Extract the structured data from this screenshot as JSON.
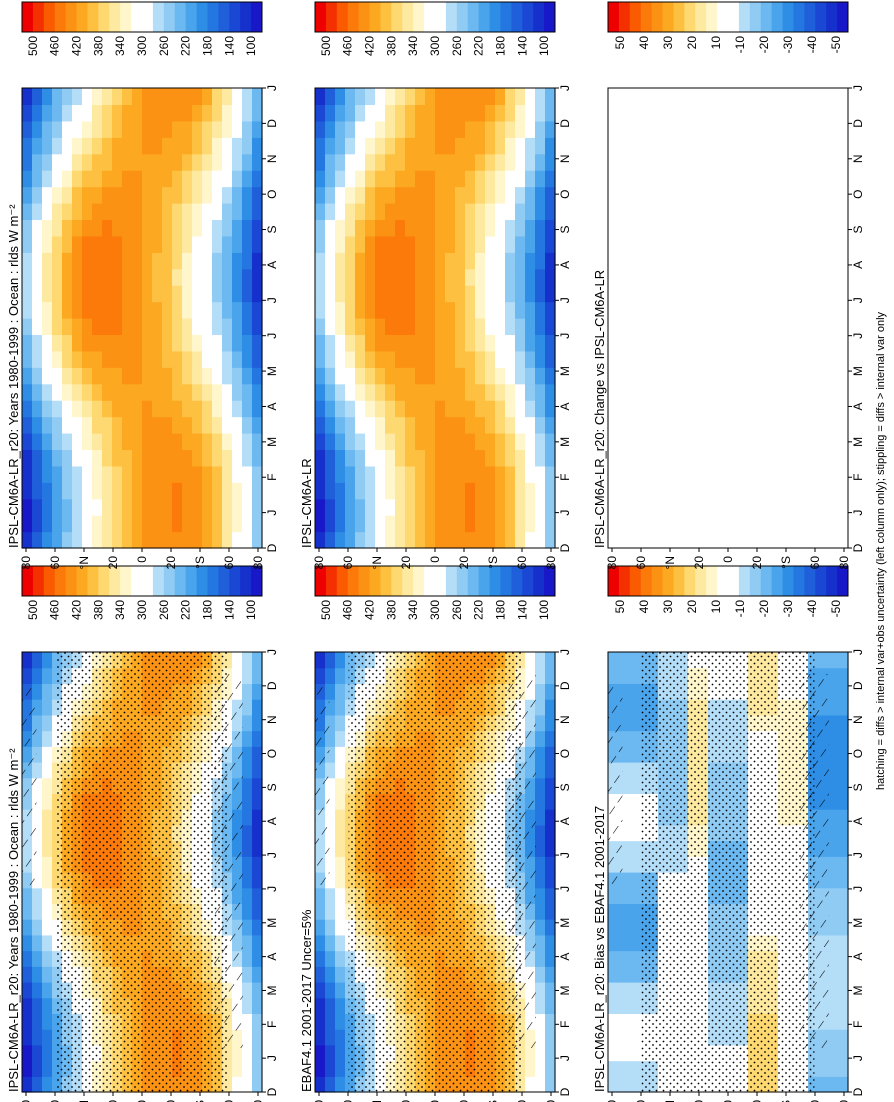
{
  "footer_note": "hatching = diffs > internal var+obs uncertainty (left column only); stippling = diffs > internal var only",
  "colors": {
    "abs_scale": [
      "#ee0000",
      "#f53000",
      "#fa5a00",
      "#fb7a0a",
      "#fc9214",
      "#fca820",
      "#fdc040",
      "#fed870",
      "#fee9a0",
      "#fff6cc",
      "#ffffff",
      "#ffffff",
      "#b4ddf8",
      "#90cbf4",
      "#6cb8f0",
      "#4aa4ec",
      "#2e8ee6",
      "#2477e0",
      "#1f60da",
      "#1a48d4",
      "#1630cc",
      "#1818c8"
    ],
    "diff_scale": [
      "#ee0000",
      "#f53000",
      "#fa5a00",
      "#fb7a0a",
      "#fc9214",
      "#fca820",
      "#fdc040",
      "#fed870",
      "#fee9a0",
      "#fff6cc",
      "#ffffff",
      "#ffffff",
      "#b4ddf8",
      "#90cbf4",
      "#6cb8f0",
      "#4aa4ec",
      "#2e8ee6",
      "#2477e0",
      "#1f60da",
      "#1a48d4",
      "#1630cc",
      "#1818c8"
    ]
  },
  "chart_data": [
    {
      "type": "heatmap",
      "title": "IPSL-CM6A-LR_r20: Years 1980-1999 : Ocean : rlds W m⁻²",
      "x_ticks": [
        "D",
        "J",
        "F",
        "M",
        "A",
        "M",
        "J",
        "J",
        "A",
        "S",
        "O",
        "N",
        "D",
        "J"
      ],
      "y_ticks": [
        "80",
        "60",
        "°N",
        "20",
        "0",
        "20",
        "°S",
        "60",
        "80"
      ],
      "colorbar_ticks": [
        "500",
        "460",
        "420",
        "380",
        "340",
        "300",
        "260",
        "220",
        "180",
        "140",
        "100"
      ],
      "colorbar_range": [
        80,
        520
      ],
      "stippling": true,
      "hatching": true
    },
    {
      "type": "heatmap",
      "title": "IPSL-CM6A-LR_r20: Years 1980-1999 : Ocean : rlds W m⁻²",
      "x_ticks": [
        "D",
        "J",
        "F",
        "M",
        "A",
        "M",
        "J",
        "J",
        "A",
        "S",
        "O",
        "N",
        "D",
        "J"
      ],
      "y_ticks": [
        "80",
        "60",
        "°N",
        "20",
        "0",
        "20",
        "°S",
        "60",
        "80"
      ],
      "colorbar_ticks": [
        "500",
        "460",
        "420",
        "380",
        "340",
        "300",
        "260",
        "220",
        "180",
        "140",
        "100"
      ],
      "colorbar_range": [
        80,
        520
      ],
      "stippling": false,
      "hatching": false
    },
    {
      "type": "heatmap",
      "title": "EBAF4.1 2001-2017 Uncer=5%",
      "x_ticks": [
        "D",
        "J",
        "F",
        "M",
        "A",
        "M",
        "J",
        "J",
        "A",
        "S",
        "O",
        "N",
        "D",
        "J"
      ],
      "y_ticks": [
        "80",
        "60",
        "°N",
        "20",
        "0",
        "20",
        "°S",
        "60",
        "80"
      ],
      "colorbar_ticks": [
        "500",
        "460",
        "420",
        "380",
        "340",
        "300",
        "260",
        "220",
        "180",
        "140",
        "100"
      ],
      "colorbar_range": [
        80,
        520
      ],
      "stippling": true,
      "hatching": true
    },
    {
      "type": "heatmap",
      "title": "IPSL-CM6A-LR",
      "x_ticks": [
        "D",
        "J",
        "F",
        "M",
        "A",
        "M",
        "J",
        "J",
        "A",
        "S",
        "O",
        "N",
        "D",
        "J"
      ],
      "y_ticks": [
        "80",
        "60",
        "°N",
        "20",
        "0",
        "20",
        "°S",
        "60",
        "80"
      ],
      "colorbar_ticks": [
        "500",
        "460",
        "420",
        "380",
        "340",
        "300",
        "260",
        "220",
        "180",
        "140",
        "100"
      ],
      "colorbar_range": [
        80,
        520
      ],
      "stippling": false,
      "hatching": false
    },
    {
      "type": "heatmap",
      "title": "IPSL-CM6A-LR_r20: Bias vs EBAF4.1 2001-2017",
      "x_ticks": [
        "D",
        "J",
        "F",
        "M",
        "A",
        "M",
        "J",
        "J",
        "A",
        "S",
        "O",
        "N",
        "D",
        "J"
      ],
      "y_ticks": [
        "80",
        "60",
        "°N",
        "20",
        "0",
        "20",
        "°S",
        "60",
        "80"
      ],
      "colorbar_ticks": [
        "50",
        "40",
        "30",
        "20",
        "10",
        "-10",
        "-20",
        "-30",
        "-40",
        "-50"
      ],
      "colorbar_range": [
        -55,
        55
      ],
      "stippling": true,
      "hatching": true
    },
    {
      "type": "heatmap",
      "title": "IPSL-CM6A-LR_r20: Change vs IPSL-CM6A-LR",
      "x_ticks": [
        "D",
        "J",
        "F",
        "M",
        "A",
        "M",
        "J",
        "J",
        "A",
        "S",
        "O",
        "N",
        "D",
        "J"
      ],
      "y_ticks": [
        "80",
        "60",
        "°N",
        "20",
        "0",
        "20",
        "°S",
        "60",
        "80"
      ],
      "colorbar_ticks": [
        "50",
        "40",
        "30",
        "20",
        "10",
        "-10",
        "-20",
        "-30",
        "-40",
        "-50"
      ],
      "colorbar_range": [
        -55,
        55
      ],
      "stippling": false,
      "hatching": false
    }
  ]
}
